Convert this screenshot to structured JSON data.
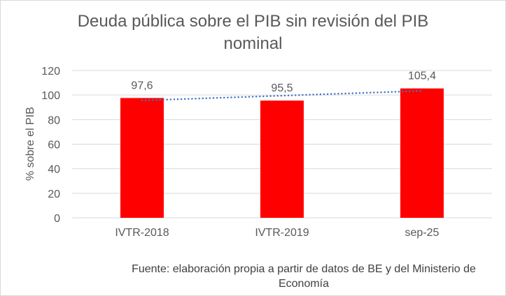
{
  "chart_data": {
    "type": "bar",
    "title_line1": "Deuda pública sobre el PIB sin revisión del PIB",
    "title_line2": "nominal",
    "xlabel": "",
    "ylabel": "% sobre el PIB",
    "categories": [
      "IVTR-2018",
      "IVTR-2019",
      "sep-25"
    ],
    "values": [
      97.6,
      95.5,
      105.4
    ],
    "data_labels": [
      "97,6",
      "95,5",
      "105,4"
    ],
    "ylim": [
      0,
      120
    ],
    "yticks": [
      0,
      20,
      40,
      60,
      80,
      100,
      120
    ],
    "grid": true,
    "legend": "none",
    "trendline": "linear",
    "colors": {
      "bar": "#FF0000",
      "trendline": "#4472C4",
      "grid": "#D9D9D9"
    },
    "source": "Fuente: elaboración propia a partir de datos de BE y del Ministerio de Economía"
  }
}
